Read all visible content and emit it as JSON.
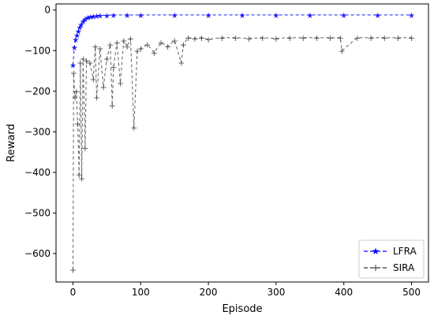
{
  "chart_data": {
    "type": "line",
    "xlabel": "Episode",
    "ylabel": "Reward",
    "xlim": [
      -25,
      525
    ],
    "ylim": [
      -670,
      15
    ],
    "xticks": [
      0,
      100,
      200,
      300,
      400,
      500
    ],
    "yticks": [
      0,
      -100,
      -200,
      -300,
      -400,
      -500,
      -600
    ],
    "grid": false,
    "legend_position": "lower-right",
    "series": [
      {
        "name": "LFRA",
        "color": "#0000ff",
        "marker": "star",
        "linestyle": "dashed",
        "x": [
          0,
          2,
          4,
          6,
          8,
          10,
          12,
          15,
          18,
          22,
          26,
          30,
          35,
          40,
          50,
          60,
          80,
          100,
          150,
          200,
          250,
          300,
          350,
          400,
          450,
          500
        ],
        "values": [
          -135,
          -92,
          -72,
          -62,
          -52,
          -42,
          -35,
          -28,
          -22,
          -18,
          -16,
          -15,
          -14,
          -13,
          -13,
          -12,
          -12,
          -12,
          -12,
          -12,
          -12,
          -12,
          -12,
          -12,
          -12,
          -12
        ]
      },
      {
        "name": "SIRA",
        "color": "#333333",
        "marker": "plus",
        "linestyle": "dashed",
        "x": [
          0,
          1,
          3,
          5,
          7,
          9,
          11,
          13,
          15,
          18,
          20,
          25,
          30,
          33,
          35,
          40,
          45,
          50,
          55,
          58,
          60,
          65,
          70,
          75,
          80,
          85,
          90,
          95,
          100,
          110,
          120,
          130,
          140,
          150,
          160,
          163,
          170,
          180,
          190,
          200,
          220,
          240,
          260,
          280,
          300,
          320,
          340,
          360,
          380,
          395,
          397,
          420,
          440,
          460,
          480,
          500
        ],
        "values": [
          -640,
          -155,
          -215,
          -200,
          -280,
          -405,
          -130,
          -415,
          -120,
          -340,
          -125,
          -130,
          -170,
          -90,
          -215,
          -95,
          -190,
          -120,
          -85,
          -235,
          -140,
          -80,
          -180,
          -75,
          -90,
          -70,
          -290,
          -100,
          -95,
          -85,
          -105,
          -80,
          -90,
          -75,
          -130,
          -85,
          -68,
          -70,
          -68,
          -72,
          -68,
          -68,
          -70,
          -68,
          -70,
          -68,
          -68,
          -68,
          -68,
          -68,
          -100,
          -68,
          -68,
          -68,
          -68,
          -68
        ]
      }
    ]
  }
}
